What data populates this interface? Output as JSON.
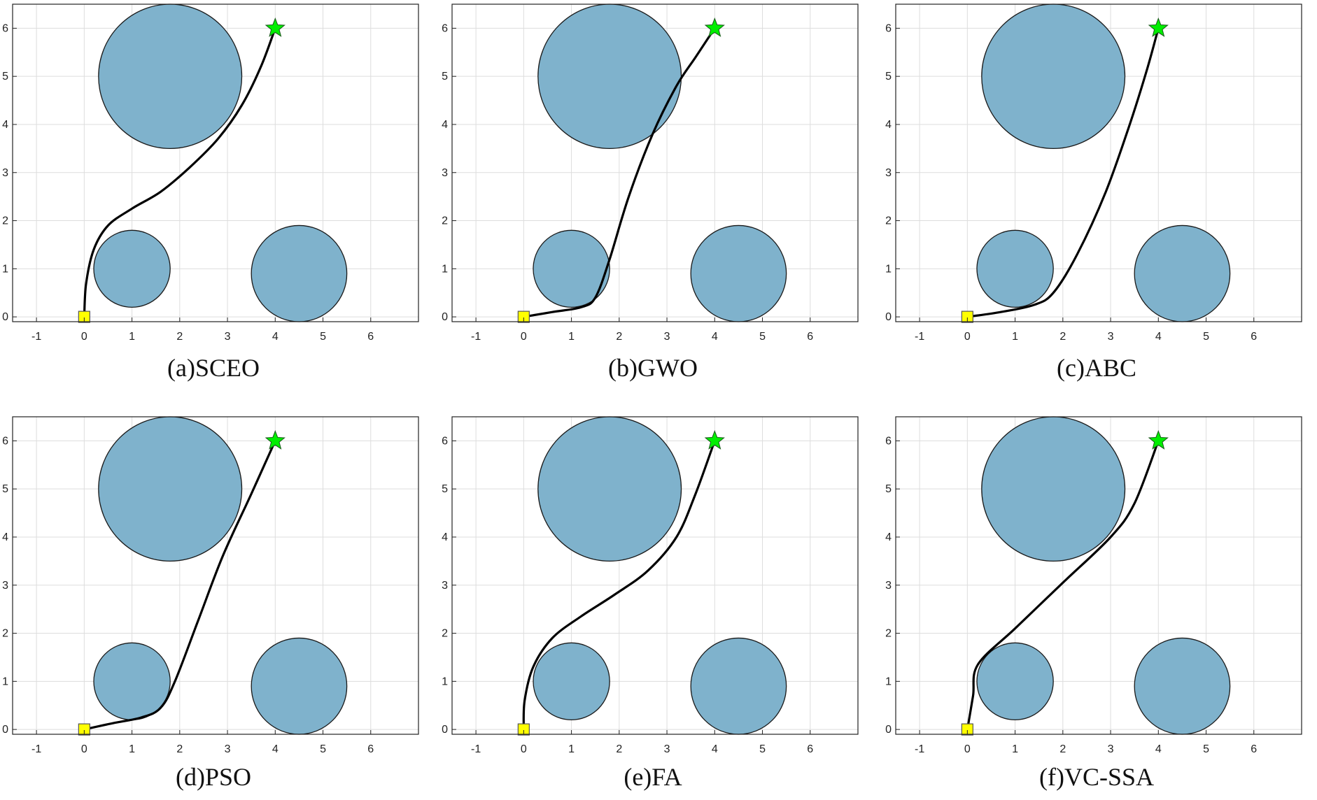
{
  "figure": {
    "obstacle_color": "#7fb2cc",
    "path_color": "#000000",
    "start_color": "#ffff00",
    "goal_color": "#00ee00",
    "grid_color": "#dddddd"
  },
  "chart_data": [
    {
      "type": "scatter",
      "title": "(a)SCEO",
      "xlim": [
        -1.5,
        7.0
      ],
      "ylim": [
        -0.1,
        6.5
      ],
      "x_ticks": [
        -1,
        0,
        1,
        2,
        3,
        4,
        5,
        6
      ],
      "y_ticks": [
        0,
        1,
        2,
        3,
        4,
        5,
        6
      ],
      "grid": true,
      "obstacles": [
        {
          "x": 1.8,
          "y": 5.0,
          "r": 1.5
        },
        {
          "x": 1.0,
          "y": 1.0,
          "r": 0.8
        },
        {
          "x": 4.5,
          "y": 0.9,
          "r": 1.0
        }
      ],
      "start": {
        "x": 0,
        "y": 0
      },
      "goal": {
        "x": 4,
        "y": 6
      },
      "path": [
        [
          0,
          0
        ],
        [
          0.04,
          0.7
        ],
        [
          0.2,
          1.4
        ],
        [
          0.5,
          1.9
        ],
        [
          1.0,
          2.25
        ],
        [
          1.6,
          2.6
        ],
        [
          2.2,
          3.1
        ],
        [
          2.8,
          3.7
        ],
        [
          3.3,
          4.4
        ],
        [
          3.7,
          5.2
        ],
        [
          4,
          6
        ]
      ]
    },
    {
      "type": "scatter",
      "title": "(b)GWO",
      "xlim": [
        -1.5,
        7.0
      ],
      "ylim": [
        -0.1,
        6.5
      ],
      "x_ticks": [
        -1,
        0,
        1,
        2,
        3,
        4,
        5,
        6
      ],
      "y_ticks": [
        0,
        1,
        2,
        3,
        4,
        5,
        6
      ],
      "grid": true,
      "obstacles": [
        {
          "x": 1.8,
          "y": 5.0,
          "r": 1.5
        },
        {
          "x": 1.0,
          "y": 1.0,
          "r": 0.8
        },
        {
          "x": 4.5,
          "y": 0.9,
          "r": 1.0
        }
      ],
      "start": {
        "x": 0,
        "y": 0
      },
      "goal": {
        "x": 4,
        "y": 6
      },
      "path": [
        [
          0,
          0
        ],
        [
          0.6,
          0.1
        ],
        [
          1.2,
          0.2
        ],
        [
          1.5,
          0.4
        ],
        [
          1.8,
          1.2
        ],
        [
          2.2,
          2.5
        ],
        [
          2.7,
          3.8
        ],
        [
          3.2,
          4.8
        ],
        [
          3.6,
          5.4
        ],
        [
          4,
          6
        ]
      ]
    },
    {
      "type": "scatter",
      "title": "(c)ABC",
      "xlim": [
        -1.5,
        7.0
      ],
      "ylim": [
        -0.1,
        6.5
      ],
      "x_ticks": [
        -1,
        0,
        1,
        2,
        3,
        4,
        5,
        6
      ],
      "y_ticks": [
        0,
        1,
        2,
        3,
        4,
        5,
        6
      ],
      "grid": true,
      "obstacles": [
        {
          "x": 1.8,
          "y": 5.0,
          "r": 1.5
        },
        {
          "x": 1.0,
          "y": 1.0,
          "r": 0.8
        },
        {
          "x": 4.5,
          "y": 0.9,
          "r": 1.0
        }
      ],
      "start": {
        "x": 0,
        "y": 0
      },
      "goal": {
        "x": 4,
        "y": 6
      },
      "path": [
        [
          0,
          0
        ],
        [
          0.7,
          0.1
        ],
        [
          1.4,
          0.25
        ],
        [
          1.8,
          0.5
        ],
        [
          2.3,
          1.3
        ],
        [
          2.9,
          2.6
        ],
        [
          3.4,
          4.0
        ],
        [
          3.75,
          5.1
        ],
        [
          4,
          6
        ]
      ]
    },
    {
      "type": "scatter",
      "title": "(d)PSO",
      "xlim": [
        -1.5,
        7.0
      ],
      "ylim": [
        -0.1,
        6.5
      ],
      "x_ticks": [
        -1,
        0,
        1,
        2,
        3,
        4,
        5,
        6
      ],
      "y_ticks": [
        0,
        1,
        2,
        3,
        4,
        5,
        6
      ],
      "grid": true,
      "obstacles": [
        {
          "x": 1.8,
          "y": 5.0,
          "r": 1.5
        },
        {
          "x": 1.0,
          "y": 1.0,
          "r": 0.8
        },
        {
          "x": 4.5,
          "y": 0.9,
          "r": 1.0
        }
      ],
      "start": {
        "x": 0,
        "y": 0
      },
      "goal": {
        "x": 4,
        "y": 6
      },
      "path": [
        [
          0,
          0
        ],
        [
          0.6,
          0.13
        ],
        [
          1.2,
          0.25
        ],
        [
          1.6,
          0.45
        ],
        [
          1.9,
          1.0
        ],
        [
          2.4,
          2.3
        ],
        [
          2.9,
          3.6
        ],
        [
          3.5,
          4.9
        ],
        [
          4,
          6
        ]
      ]
    },
    {
      "type": "scatter",
      "title": "(e)FA",
      "xlim": [
        -1.5,
        7.0
      ],
      "ylim": [
        -0.1,
        6.5
      ],
      "x_ticks": [
        -1,
        0,
        1,
        2,
        3,
        4,
        5,
        6
      ],
      "y_ticks": [
        0,
        1,
        2,
        3,
        4,
        5,
        6
      ],
      "grid": true,
      "obstacles": [
        {
          "x": 1.8,
          "y": 5.0,
          "r": 1.5
        },
        {
          "x": 1.0,
          "y": 1.0,
          "r": 0.8
        },
        {
          "x": 4.5,
          "y": 0.9,
          "r": 1.0
        }
      ],
      "start": {
        "x": 0,
        "y": 0
      },
      "goal": {
        "x": 4,
        "y": 6
      },
      "path": [
        [
          0,
          0
        ],
        [
          0.02,
          0.6
        ],
        [
          0.2,
          1.3
        ],
        [
          0.6,
          1.9
        ],
        [
          1.2,
          2.35
        ],
        [
          1.9,
          2.8
        ],
        [
          2.6,
          3.3
        ],
        [
          3.2,
          4.0
        ],
        [
          3.6,
          4.9
        ],
        [
          4,
          6
        ]
      ]
    },
    {
      "type": "scatter",
      "title": "(f)VC-SSA",
      "xlim": [
        -1.5,
        7.0
      ],
      "ylim": [
        -0.1,
        6.5
      ],
      "x_ticks": [
        -1,
        0,
        1,
        2,
        3,
        4,
        5,
        6
      ],
      "y_ticks": [
        0,
        1,
        2,
        3,
        4,
        5,
        6
      ],
      "grid": true,
      "obstacles": [
        {
          "x": 1.8,
          "y": 5.0,
          "r": 1.5
        },
        {
          "x": 1.0,
          "y": 1.0,
          "r": 0.8
        },
        {
          "x": 4.5,
          "y": 0.9,
          "r": 1.0
        }
      ],
      "start": {
        "x": 0,
        "y": 0
      },
      "goal": {
        "x": 4,
        "y": 6
      },
      "path": [
        [
          0,
          0
        ],
        [
          0.12,
          0.7
        ],
        [
          0.22,
          1.35
        ],
        [
          1.0,
          2.1
        ],
        [
          2.0,
          3.05
        ],
        [
          3.0,
          4.0
        ],
        [
          3.5,
          4.7
        ],
        [
          4,
          6
        ]
      ]
    }
  ]
}
